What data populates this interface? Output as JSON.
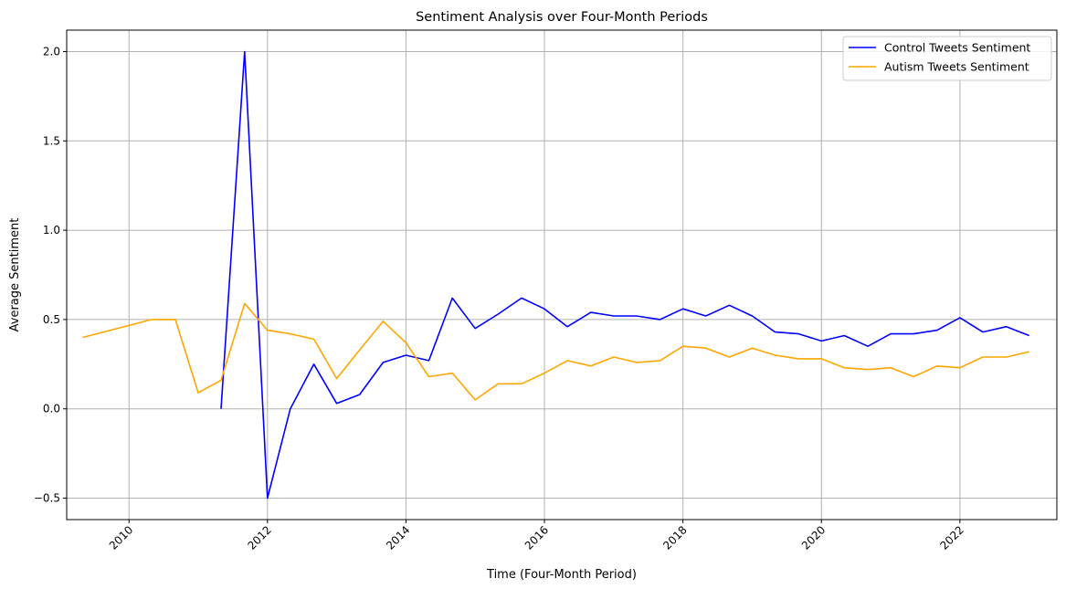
{
  "chart_data": {
    "type": "line",
    "title": "Sentiment Analysis over Four-Month Periods",
    "xlabel": "Time (Four-Month Period)",
    "ylabel": "Average Sentiment",
    "xlim": [
      2009.1,
      2023.4
    ],
    "ylim": [
      -0.62,
      2.12
    ],
    "x_ticks": [
      2010,
      2012,
      2014,
      2016,
      2018,
      2020,
      2022
    ],
    "x_tick_labels": [
      "2010",
      "2012",
      "2014",
      "2016",
      "2018",
      "2020",
      "2022"
    ],
    "y_ticks": [
      -0.5,
      0.0,
      0.5,
      1.0,
      1.5,
      2.0
    ],
    "y_tick_labels": [
      "−0.5",
      "0.0",
      "0.5",
      "1.0",
      "1.5",
      "2.0"
    ],
    "grid": true,
    "legend_position": "top-right",
    "series": [
      {
        "name": "Control Tweets Sentiment",
        "color": "#0000ff",
        "x": [
          2011.33,
          2011.67,
          2012.0,
          2012.33,
          2012.67,
          2013.0,
          2013.33,
          2013.67,
          2014.0,
          2014.33,
          2014.67,
          2015.0,
          2015.33,
          2015.67,
          2016.0,
          2016.33,
          2016.67,
          2017.0,
          2017.33,
          2017.67,
          2018.0,
          2018.33,
          2018.67,
          2019.0,
          2019.33,
          2019.67,
          2020.0,
          2020.33,
          2020.67,
          2021.0,
          2021.33,
          2021.67,
          2022.0,
          2022.33,
          2022.67,
          2023.0
        ],
        "values": [
          0.0,
          2.0,
          -0.5,
          0.0,
          0.25,
          0.03,
          0.08,
          0.26,
          0.3,
          0.27,
          0.62,
          0.45,
          0.53,
          0.62,
          0.56,
          0.46,
          0.54,
          0.52,
          0.52,
          0.5,
          0.56,
          0.52,
          0.58,
          0.52,
          0.43,
          0.42,
          0.38,
          0.41,
          0.35,
          0.42,
          0.42,
          0.44,
          0.51,
          0.43,
          0.46,
          0.41
        ]
      },
      {
        "name": "Autism Tweets Sentiment",
        "color": "#ffa500",
        "x": [
          2009.33,
          2010.33,
          2010.67,
          2011.0,
          2011.33,
          2011.67,
          2012.0,
          2012.33,
          2012.67,
          2013.0,
          2013.33,
          2013.67,
          2014.0,
          2014.33,
          2014.67,
          2015.0,
          2015.33,
          2015.67,
          2016.0,
          2016.33,
          2016.67,
          2017.0,
          2017.33,
          2017.67,
          2018.0,
          2018.33,
          2018.67,
          2019.0,
          2019.33,
          2019.67,
          2020.0,
          2020.33,
          2020.67,
          2021.0,
          2021.33,
          2021.67,
          2022.0,
          2022.33,
          2022.67,
          2023.0
        ],
        "values": [
          0.4,
          0.5,
          0.5,
          0.09,
          0.16,
          0.59,
          0.44,
          0.42,
          0.39,
          0.17,
          0.33,
          0.49,
          0.37,
          0.18,
          0.2,
          0.05,
          0.14,
          0.14,
          0.2,
          0.27,
          0.24,
          0.29,
          0.26,
          0.27,
          0.35,
          0.34,
          0.29,
          0.34,
          0.3,
          0.28,
          0.28,
          0.23,
          0.22,
          0.23,
          0.18,
          0.24,
          0.23,
          0.29,
          0.29,
          0.32
        ]
      }
    ]
  }
}
